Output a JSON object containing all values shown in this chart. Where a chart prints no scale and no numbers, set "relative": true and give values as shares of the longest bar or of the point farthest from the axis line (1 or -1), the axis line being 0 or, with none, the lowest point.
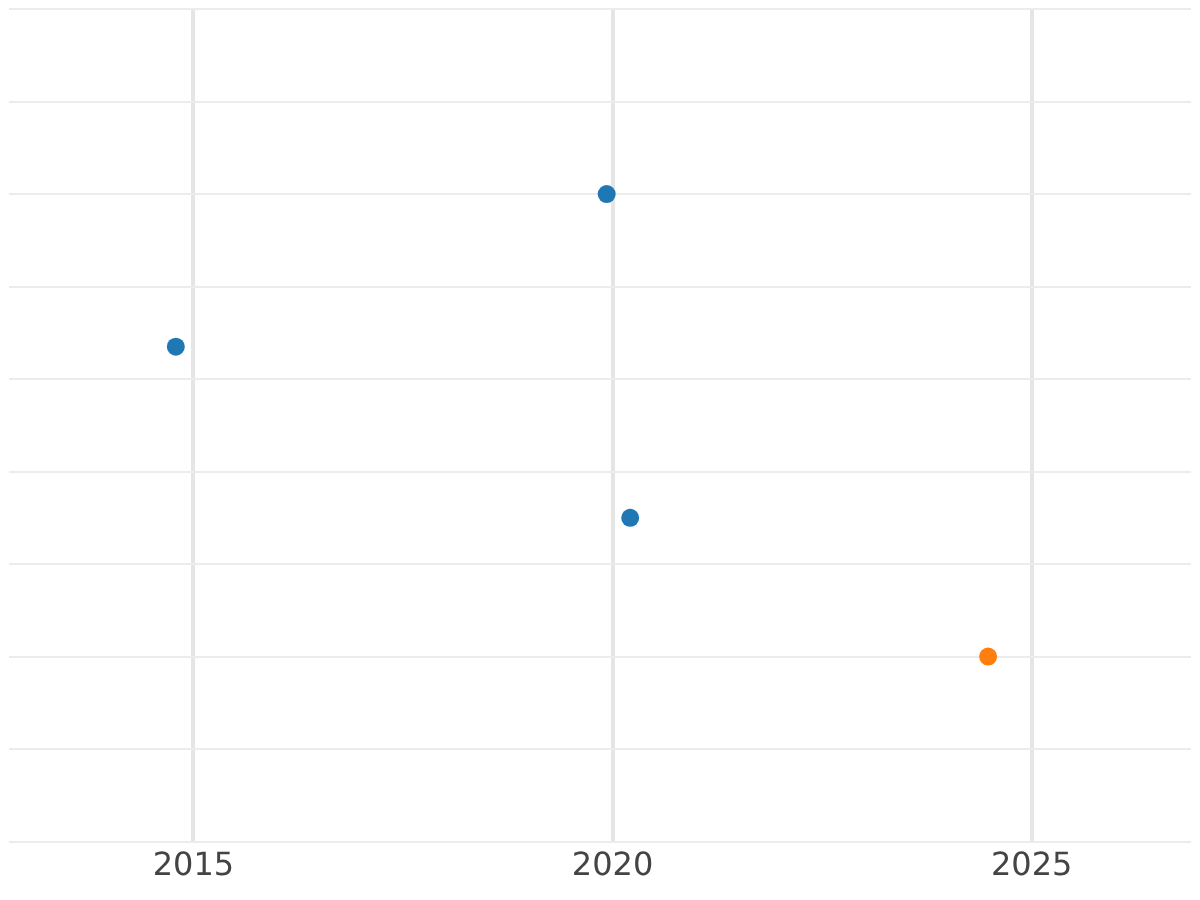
{
  "chart_data": {
    "type": "scatter",
    "relative": true,
    "xlim": [
      2012.8,
      2026.9
    ],
    "xticks": [
      2015,
      2020,
      2025
    ],
    "series": [
      {
        "color": "#1f77b4",
        "x": [
          2014.79,
          2019.93,
          2020.21
        ],
        "values": [
          0.67,
          1,
          0.3
        ]
      },
      {
        "color": "#ff7f0e",
        "x": [
          2024.48
        ],
        "values": [
          0
        ]
      }
    ],
    "grid": true,
    "marker": "circle",
    "legend": false
  }
}
